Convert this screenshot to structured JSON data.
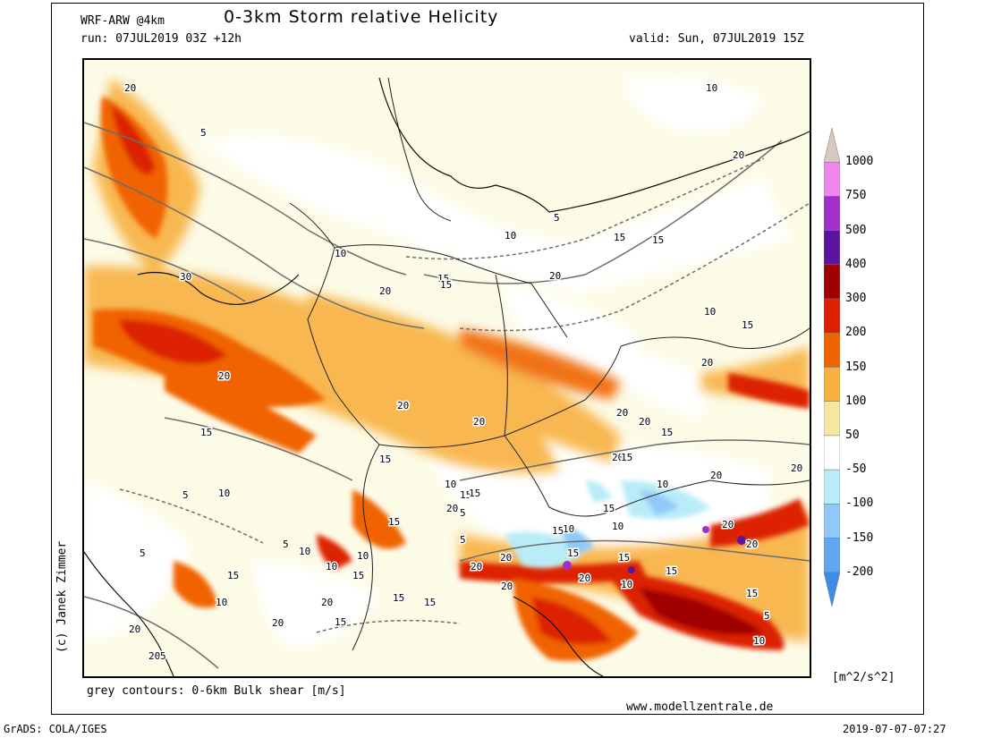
{
  "header": {
    "model": "WRF-ARW @4km",
    "title": "0-3km Storm relative Helicity",
    "run": "run: 07JUL2019 03Z +12h",
    "valid": "valid: Sun, 07JUL2019 15Z"
  },
  "footer": {
    "contours_note": "grey contours: 0-6km Bulk shear [m/s]",
    "website": "www.modellzentrale.de",
    "grads": "GrADS: COLA/IGES",
    "timestamp": "2019-07-07-07:27",
    "credit": "(c) Janek Zimmer"
  },
  "legend": {
    "units": "[m^2/s^2]",
    "levels": [
      {
        "label": "1000",
        "color": "#d8c8c0"
      },
      {
        "label": "750",
        "color": "#ee88ee"
      },
      {
        "label": "500",
        "color": "#a030c8"
      },
      {
        "label": "400",
        "color": "#5a14a0"
      },
      {
        "label": "300",
        "color": "#a00000"
      },
      {
        "label": "200",
        "color": "#dc2000"
      },
      {
        "label": "150",
        "color": "#f06400"
      },
      {
        "label": "100",
        "color": "#f8b040"
      },
      {
        "label": "50",
        "color": "#f4e8a0"
      },
      {
        "label": "-50",
        "color": "#ffffff"
      },
      {
        "label": "-100",
        "color": "#b8ecf8"
      },
      {
        "label": "-150",
        "color": "#90c8f8"
      },
      {
        "label": "-200",
        "color": "#60a8f0"
      },
      {
        "label": "",
        "color": "#3c8ce8"
      }
    ]
  },
  "contour_labels": [
    "20",
    "5",
    "10",
    "15",
    "10",
    "5",
    "15",
    "10",
    "20",
    "15",
    "20",
    "30",
    "20",
    "20",
    "15",
    "20",
    "20",
    "20",
    "10",
    "15",
    "5",
    "15",
    "15",
    "10",
    "5",
    "10",
    "5",
    "20",
    "15",
    "20",
    "20",
    "15",
    "15",
    "20",
    "10",
    "15",
    "20",
    "15",
    "20",
    "20",
    "5",
    "10",
    "10",
    "15",
    "15",
    "10",
    "20",
    "15",
    "15",
    "20",
    "20",
    "10",
    "15",
    "20",
    "15",
    "5",
    "15",
    "5",
    "10",
    "5",
    "10",
    "15",
    "20",
    "20",
    "15",
    "10",
    "20",
    "15",
    "10",
    "15",
    "20",
    "20"
  ]
}
